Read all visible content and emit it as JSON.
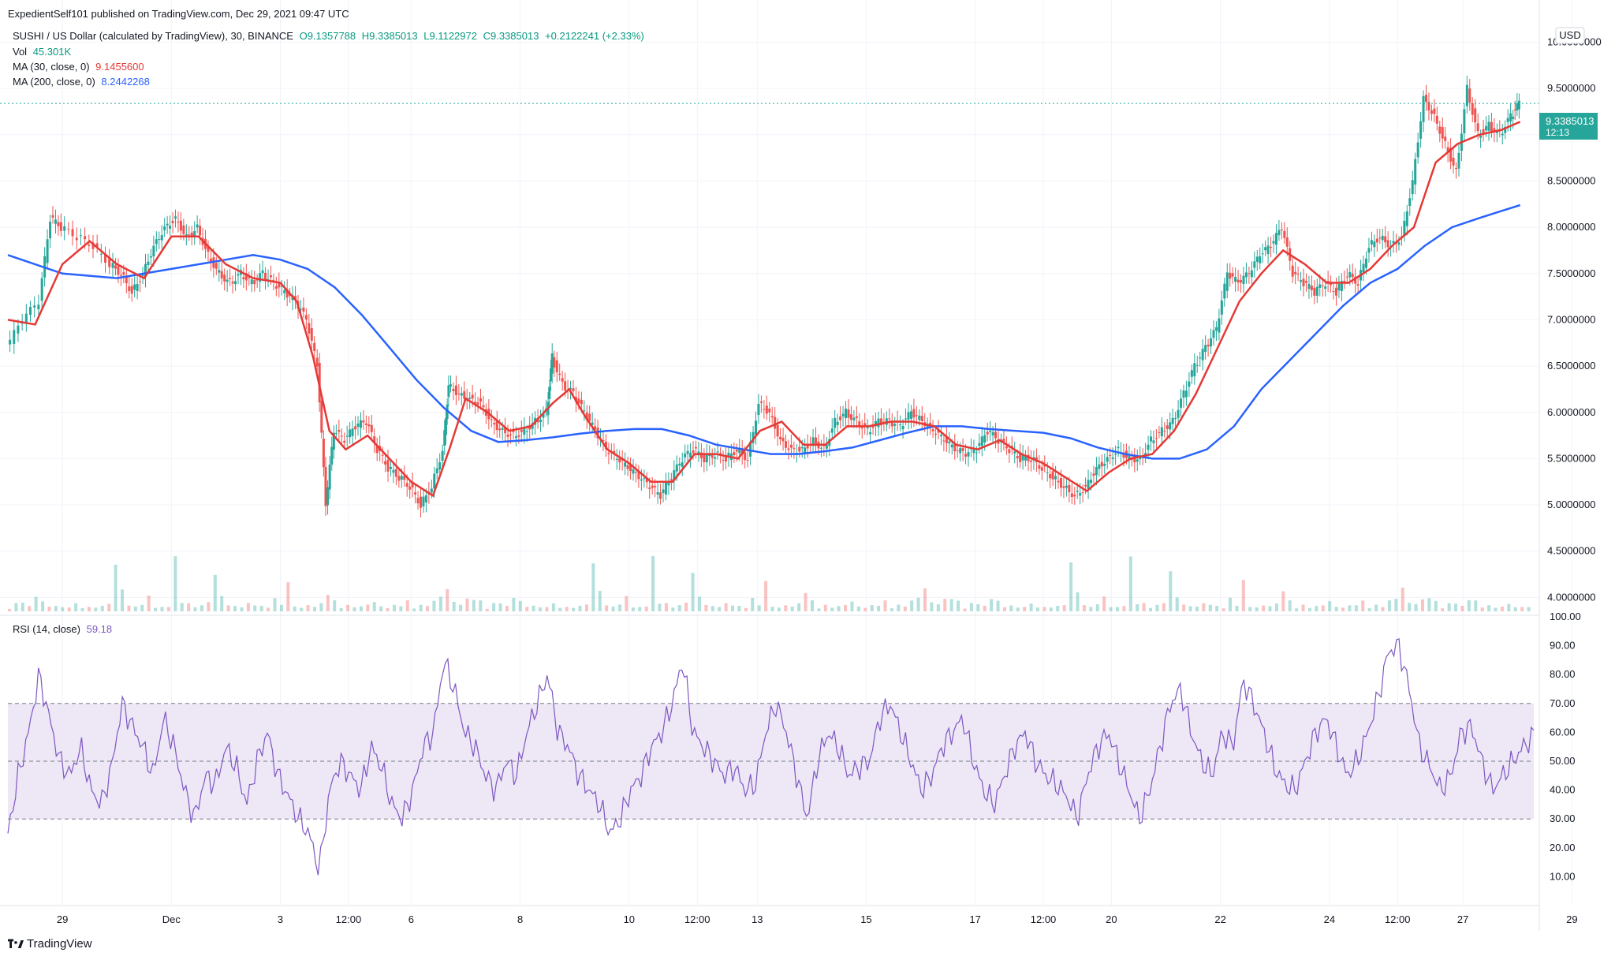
{
  "publisher": "ExpedientSelf101 published on TradingView.com, Dec 29, 2021 09:47 UTC",
  "header": {
    "symbol": "SUSHI / US Dollar (calculated by TradingView), 30, BINANCE",
    "open": "O9.1357788",
    "high": "H9.3385013",
    "low": "L9.1122972",
    "close": "C9.3385013",
    "change": "+0.2122241 (+2.33%)",
    "vol_label": "Vol",
    "vol_value": "45.301K",
    "ma30_label": "MA (30, close, 0)",
    "ma30_value": "9.1455600",
    "ma200_label": "MA (200, close, 0)",
    "ma200_value": "8.2442268",
    "rsi_label": "RSI (14, close)",
    "rsi_value": "59.18"
  },
  "currency": "USD",
  "last_price": {
    "value": "9.3385013",
    "countdown": "12:13"
  },
  "brand": "TradingView",
  "colors": {
    "up": "#26a69a",
    "down": "#ef5350",
    "ma30": "#e53935",
    "ma200": "#2962ff",
    "rsi": "#7e57c2",
    "rsi_band": "#ede7f6",
    "price_badge": "#26a69a"
  },
  "chart_data": [
    {
      "type": "candlestick",
      "name": "SUSHI / US Dollar",
      "ylim": [
        3.85,
        10.2
      ],
      "y_ticks": [
        "10.0000000",
        "9.5000000",
        "9.0000000",
        "8.5000000",
        "8.0000000",
        "7.5000000",
        "7.0000000",
        "6.5000000",
        "6.0000000",
        "5.5000000",
        "5.0000000",
        "4.5000000",
        "4.0000000"
      ],
      "x_ticks": [
        "29",
        "Dec",
        "3",
        "12:00",
        "6",
        "8",
        "10",
        "12:00",
        "13",
        "15",
        "17",
        "12:00",
        "20",
        "22",
        "24",
        "12:00",
        "27",
        "29"
      ],
      "x_tick_index": [
        1.0,
        3.0,
        5.0,
        6.25,
        7.4,
        9.4,
        11.4,
        12.65,
        13.75,
        15.75,
        17.75,
        19.0,
        20.25,
        22.25,
        24.25,
        25.5,
        26.7,
        28.7
      ],
      "close_series": [
        [
          0,
          6.7
        ],
        [
          0.3,
          7.0
        ],
        [
          0.6,
          7.2
        ],
        [
          0.8,
          8.1
        ],
        [
          1.0,
          8.0
        ],
        [
          1.3,
          7.9
        ],
        [
          1.6,
          7.8
        ],
        [
          1.9,
          7.6
        ],
        [
          2.1,
          7.5
        ],
        [
          2.3,
          7.3
        ],
        [
          2.5,
          7.5
        ],
        [
          2.7,
          7.8
        ],
        [
          2.9,
          8.0
        ],
        [
          3.1,
          8.1
        ],
        [
          3.3,
          7.9
        ],
        [
          3.5,
          8.0
        ],
        [
          3.7,
          7.7
        ],
        [
          3.9,
          7.5
        ],
        [
          4.1,
          7.4
        ],
        [
          4.3,
          7.5
        ],
        [
          4.5,
          7.4
        ],
        [
          4.7,
          7.5
        ],
        [
          4.9,
          7.4
        ],
        [
          5.1,
          7.3
        ],
        [
          5.3,
          7.2
        ],
        [
          5.5,
          7.0
        ],
        [
          5.7,
          6.5
        ],
        [
          5.85,
          5.0
        ],
        [
          6.0,
          5.8
        ],
        [
          6.2,
          5.7
        ],
        [
          6.4,
          5.85
        ],
        [
          6.6,
          5.9
        ],
        [
          6.8,
          5.6
        ],
        [
          7.0,
          5.4
        ],
        [
          7.2,
          5.3
        ],
        [
          7.4,
          5.2
        ],
        [
          7.6,
          5.0
        ],
        [
          7.8,
          5.2
        ],
        [
          8.0,
          5.6
        ],
        [
          8.1,
          6.3
        ],
        [
          8.3,
          6.2
        ],
        [
          8.5,
          6.15
        ],
        [
          8.7,
          6.1
        ],
        [
          8.9,
          5.9
        ],
        [
          9.1,
          5.8
        ],
        [
          9.3,
          5.75
        ],
        [
          9.5,
          5.8
        ],
        [
          9.7,
          5.9
        ],
        [
          9.9,
          6.0
        ],
        [
          10.0,
          6.6
        ],
        [
          10.2,
          6.3
        ],
        [
          10.4,
          6.2
        ],
        [
          10.6,
          6.0
        ],
        [
          10.8,
          5.8
        ],
        [
          11.0,
          5.6
        ],
        [
          11.2,
          5.5
        ],
        [
          11.4,
          5.4
        ],
        [
          11.6,
          5.3
        ],
        [
          11.8,
          5.2
        ],
        [
          12.0,
          5.1
        ],
        [
          12.2,
          5.3
        ],
        [
          12.4,
          5.5
        ],
        [
          12.6,
          5.6
        ],
        [
          12.8,
          5.5
        ],
        [
          13.0,
          5.55
        ],
        [
          13.2,
          5.5
        ],
        [
          13.4,
          5.6
        ],
        [
          13.6,
          5.5
        ],
        [
          13.8,
          6.1
        ],
        [
          14.0,
          6.0
        ],
        [
          14.2,
          5.7
        ],
        [
          14.4,
          5.6
        ],
        [
          14.6,
          5.6
        ],
        [
          14.8,
          5.7
        ],
        [
          15.0,
          5.6
        ],
        [
          15.2,
          5.9
        ],
        [
          15.4,
          6.0
        ],
        [
          15.6,
          5.9
        ],
        [
          15.8,
          5.8
        ],
        [
          16.0,
          5.9
        ],
        [
          16.2,
          5.9
        ],
        [
          16.4,
          5.85
        ],
        [
          16.6,
          6.0
        ],
        [
          16.8,
          5.9
        ],
        [
          17.0,
          5.8
        ],
        [
          17.2,
          5.7
        ],
        [
          17.4,
          5.6
        ],
        [
          17.6,
          5.55
        ],
        [
          17.8,
          5.6
        ],
        [
          18.0,
          5.8
        ],
        [
          18.2,
          5.7
        ],
        [
          18.4,
          5.6
        ],
        [
          18.6,
          5.5
        ],
        [
          18.8,
          5.5
        ],
        [
          19.0,
          5.4
        ],
        [
          19.2,
          5.3
        ],
        [
          19.4,
          5.2
        ],
        [
          19.6,
          5.1
        ],
        [
          19.8,
          5.2
        ],
        [
          20.0,
          5.4
        ],
        [
          20.2,
          5.5
        ],
        [
          20.4,
          5.6
        ],
        [
          20.6,
          5.5
        ],
        [
          20.8,
          5.5
        ],
        [
          21.0,
          5.7
        ],
        [
          21.2,
          5.8
        ],
        [
          21.4,
          5.9
        ],
        [
          21.6,
          6.2
        ],
        [
          21.8,
          6.5
        ],
        [
          22.0,
          6.7
        ],
        [
          22.2,
          6.9
        ],
        [
          22.4,
          7.5
        ],
        [
          22.6,
          7.4
        ],
        [
          22.8,
          7.5
        ],
        [
          23.0,
          7.7
        ],
        [
          23.2,
          7.8
        ],
        [
          23.4,
          8.0
        ],
        [
          23.6,
          7.5
        ],
        [
          23.8,
          7.4
        ],
        [
          24.0,
          7.3
        ],
        [
          24.2,
          7.4
        ],
        [
          24.4,
          7.3
        ],
        [
          24.6,
          7.5
        ],
        [
          24.8,
          7.4
        ],
        [
          25.0,
          7.8
        ],
        [
          25.2,
          7.9
        ],
        [
          25.4,
          7.8
        ],
        [
          25.6,
          7.9
        ],
        [
          25.8,
          8.5
        ],
        [
          26.0,
          9.4
        ],
        [
          26.2,
          9.2
        ],
        [
          26.4,
          8.9
        ],
        [
          26.6,
          8.6
        ],
        [
          26.8,
          9.5
        ],
        [
          27.0,
          9.0
        ],
        [
          27.2,
          9.1
        ],
        [
          27.4,
          9.0
        ],
        [
          27.6,
          9.2
        ],
        [
          27.75,
          9.34
        ]
      ],
      "ma30": [
        [
          0,
          7.0
        ],
        [
          0.5,
          6.95
        ],
        [
          1.0,
          7.6
        ],
        [
          1.5,
          7.85
        ],
        [
          2.0,
          7.6
        ],
        [
          2.5,
          7.45
        ],
        [
          3.0,
          7.9
        ],
        [
          3.5,
          7.9
        ],
        [
          4.0,
          7.6
        ],
        [
          4.5,
          7.45
        ],
        [
          5.0,
          7.4
        ],
        [
          5.3,
          7.2
        ],
        [
          5.6,
          6.6
        ],
        [
          5.9,
          5.8
        ],
        [
          6.2,
          5.6
        ],
        [
          6.6,
          5.75
        ],
        [
          7.0,
          5.5
        ],
        [
          7.4,
          5.25
        ],
        [
          7.8,
          5.1
        ],
        [
          8.1,
          5.6
        ],
        [
          8.4,
          6.15
        ],
        [
          8.8,
          6.0
        ],
        [
          9.2,
          5.8
        ],
        [
          9.6,
          5.85
        ],
        [
          10.0,
          6.1
        ],
        [
          10.3,
          6.25
        ],
        [
          10.6,
          5.95
        ],
        [
          11.0,
          5.6
        ],
        [
          11.4,
          5.45
        ],
        [
          11.8,
          5.25
        ],
        [
          12.2,
          5.25
        ],
        [
          12.6,
          5.55
        ],
        [
          13.0,
          5.55
        ],
        [
          13.4,
          5.5
        ],
        [
          13.8,
          5.8
        ],
        [
          14.2,
          5.9
        ],
        [
          14.6,
          5.65
        ],
        [
          15.0,
          5.65
        ],
        [
          15.4,
          5.85
        ],
        [
          15.8,
          5.85
        ],
        [
          16.2,
          5.9
        ],
        [
          16.6,
          5.9
        ],
        [
          17.0,
          5.85
        ],
        [
          17.4,
          5.65
        ],
        [
          17.8,
          5.6
        ],
        [
          18.2,
          5.7
        ],
        [
          18.6,
          5.55
        ],
        [
          19.0,
          5.45
        ],
        [
          19.4,
          5.3
        ],
        [
          19.8,
          5.15
        ],
        [
          20.2,
          5.35
        ],
        [
          20.6,
          5.5
        ],
        [
          21.0,
          5.55
        ],
        [
          21.4,
          5.8
        ],
        [
          21.8,
          6.2
        ],
        [
          22.2,
          6.7
        ],
        [
          22.6,
          7.2
        ],
        [
          23.0,
          7.5
        ],
        [
          23.4,
          7.75
        ],
        [
          23.8,
          7.6
        ],
        [
          24.2,
          7.4
        ],
        [
          24.6,
          7.4
        ],
        [
          25.0,
          7.55
        ],
        [
          25.4,
          7.8
        ],
        [
          25.8,
          8.0
        ],
        [
          26.2,
          8.7
        ],
        [
          26.6,
          8.9
        ],
        [
          27.0,
          9.0
        ],
        [
          27.4,
          9.05
        ],
        [
          27.75,
          9.14
        ]
      ],
      "ma200": [
        [
          0,
          7.7
        ],
        [
          1.0,
          7.5
        ],
        [
          2.0,
          7.45
        ],
        [
          3.0,
          7.55
        ],
        [
          4.0,
          7.65
        ],
        [
          4.5,
          7.7
        ],
        [
          5.0,
          7.65
        ],
        [
          5.5,
          7.55
        ],
        [
          6.0,
          7.35
        ],
        [
          6.5,
          7.05
        ],
        [
          7.0,
          6.7
        ],
        [
          7.5,
          6.35
        ],
        [
          8.0,
          6.05
        ],
        [
          8.5,
          5.8
        ],
        [
          9.0,
          5.68
        ],
        [
          9.5,
          5.7
        ],
        [
          10.0,
          5.73
        ],
        [
          10.5,
          5.77
        ],
        [
          11.0,
          5.8
        ],
        [
          11.5,
          5.82
        ],
        [
          12.0,
          5.82
        ],
        [
          12.5,
          5.75
        ],
        [
          13.0,
          5.65
        ],
        [
          13.5,
          5.6
        ],
        [
          14.0,
          5.55
        ],
        [
          14.5,
          5.55
        ],
        [
          15.0,
          5.58
        ],
        [
          15.5,
          5.62
        ],
        [
          16.0,
          5.7
        ],
        [
          16.5,
          5.78
        ],
        [
          17.0,
          5.85
        ],
        [
          17.5,
          5.85
        ],
        [
          18.0,
          5.82
        ],
        [
          18.5,
          5.8
        ],
        [
          19.0,
          5.78
        ],
        [
          19.5,
          5.72
        ],
        [
          20.0,
          5.62
        ],
        [
          20.5,
          5.55
        ],
        [
          21.0,
          5.5
        ],
        [
          21.5,
          5.5
        ],
        [
          22.0,
          5.6
        ],
        [
          22.5,
          5.85
        ],
        [
          23.0,
          6.25
        ],
        [
          23.5,
          6.55
        ],
        [
          24.0,
          6.85
        ],
        [
          24.5,
          7.15
        ],
        [
          25.0,
          7.4
        ],
        [
          25.5,
          7.55
        ],
        [
          26.0,
          7.8
        ],
        [
          26.5,
          8.0
        ],
        [
          27.0,
          8.1
        ],
        [
          27.75,
          8.24
        ]
      ]
    },
    {
      "type": "bar",
      "name": "Vol",
      "values_relative": [
        0.08,
        0.15,
        0.25,
        0.1,
        0.35,
        0.2,
        0.1,
        0.12,
        0.08,
        0.1,
        0.15,
        0.1,
        0.08,
        0.12,
        0.1,
        0.2,
        0.9,
        0.5,
        0.12,
        0.1,
        0.15,
        0.3,
        0.1,
        0.08,
        0.15,
        1.0,
        0.25,
        0.15,
        0.1,
        0.12,
        0.2,
        0.8,
        0.3,
        0.15,
        0.1,
        0.12,
        0.15,
        0.2,
        0.1,
        0.1,
        0.25,
        0.15,
        0.6,
        0.1,
        0.08,
        0.12,
        0.12,
        0.15,
        0.55,
        0.2,
        0.1,
        0.12,
        0.1,
        0.1,
        0.15,
        0.2,
        0.1,
        0.08,
        0.12,
        0.15,
        0.2,
        0.1,
        0.12,
        0.15,
        0.2,
        0.35,
        0.45,
        0.2,
        0.15,
        0.25,
        0.3,
        0.2
      ]
    },
    {
      "type": "line",
      "name": "RSI (14, close)",
      "ylim": [
        0,
        100
      ],
      "y_ticks": [
        "100.00",
        "90.00",
        "80.00",
        "70.00",
        "60.00",
        "50.00",
        "40.00",
        "30.00",
        "20.00",
        "10.00"
      ],
      "bands": [
        30,
        50,
        70
      ],
      "values": [
        25,
        45,
        60,
        80,
        65,
        50,
        45,
        55,
        40,
        35,
        48,
        70,
        62,
        55,
        45,
        65,
        55,
        40,
        30,
        45,
        42,
        55,
        48,
        35,
        50,
        60,
        45,
        38,
        30,
        25,
        12,
        40,
        50,
        45,
        40,
        55,
        48,
        35,
        30,
        40,
        55,
        60,
        85,
        75,
        60,
        55,
        45,
        40,
        50,
        45,
        60,
        70,
        80,
        60,
        55,
        45,
        40,
        35,
        25,
        30,
        40,
        45,
        55,
        60,
        70,
        85,
        60,
        55,
        50,
        45,
        48,
        40,
        42,
        60,
        70,
        60,
        45,
        30,
        50,
        60,
        55,
        45,
        48,
        50,
        65,
        70,
        60,
        50,
        40,
        45,
        55,
        60,
        65,
        50,
        40,
        35,
        45,
        55,
        60,
        50,
        45,
        42,
        38,
        30,
        45,
        55,
        60,
        50,
        40,
        30,
        40,
        55,
        70,
        75,
        60,
        50,
        45,
        60,
        55,
        78,
        70,
        60,
        48,
        42,
        40,
        50,
        60,
        65,
        55,
        45,
        50,
        60,
        72,
        88,
        90,
        75,
        55,
        48,
        40,
        45,
        60,
        62,
        50,
        40,
        45,
        50,
        55,
        59
      ]
    }
  ]
}
